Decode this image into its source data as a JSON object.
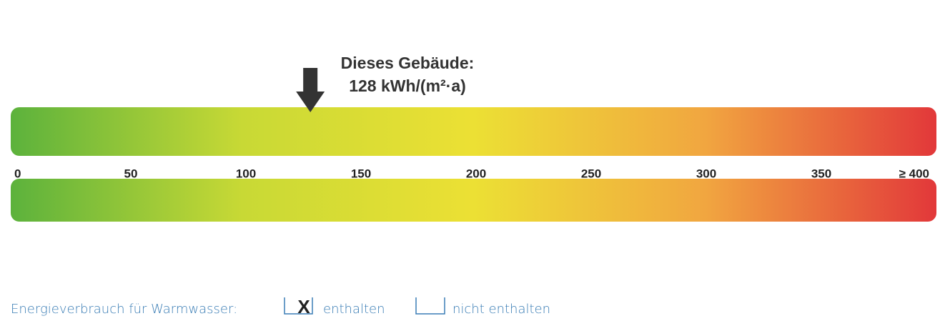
{
  "chart_data": {
    "type": "scale",
    "xlim": [
      0,
      400
    ],
    "xticks": [
      0,
      50,
      100,
      150,
      200,
      250,
      300,
      350,
      {
        "value": 400,
        "label": "≥ 400"
      }
    ],
    "colors": [
      "#5cb23c",
      "#c8d935",
      "#ece034",
      "#f1a640",
      "#e2383a"
    ],
    "marker": {
      "title": "Dieses Gebäude:",
      "value": 128,
      "value_label": "128 kWh/(m²·a)"
    },
    "footer": {
      "label": "Energieverbrauch für Warmwasser:",
      "options": [
        {
          "text": "enthalten",
          "checked": true,
          "check_mark": "X"
        },
        {
          "text": "nicht enthalten",
          "checked": false
        }
      ]
    }
  }
}
